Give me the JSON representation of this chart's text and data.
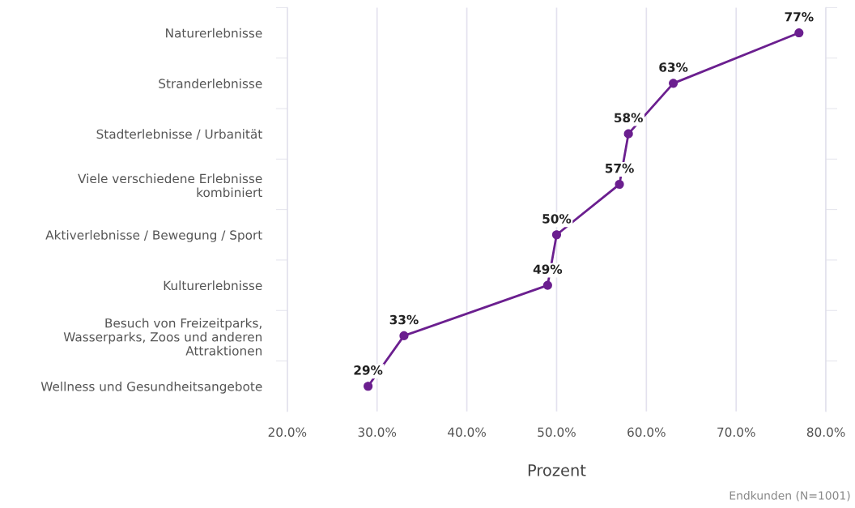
{
  "chart_data": {
    "type": "line",
    "orientation": "horizontal",
    "categories": [
      "Naturerlebnisse",
      "Stranderlebnisse",
      "Stadterlebnisse / Urbanität",
      "Viele verschiedene Erlebnisse\nkombiniert",
      "Aktiverlebnisse / Bewegung / Sport",
      "Kulturerlebnisse",
      "Besuch von Freizeitparks,\nWasserparks, Zoos und anderen\nAttraktionen",
      "Wellness und Gesundheitsangebote"
    ],
    "series": [
      {
        "color": "#6b1f8f",
        "values": [
          77,
          63,
          58,
          57,
          50,
          49,
          33,
          29
        ]
      }
    ],
    "value_labels": [
      "77%",
      "63%",
      "58%",
      "57%",
      "50%",
      "49%",
      "33%",
      "29%"
    ],
    "xlabel": "Prozent",
    "xlim": [
      20,
      80
    ],
    "xticks": [
      {
        "value": 20,
        "label": "20.0%"
      },
      {
        "value": 30,
        "label": "30.0%"
      },
      {
        "value": 40,
        "label": "40.0%"
      },
      {
        "value": 50,
        "label": "50.0%"
      },
      {
        "value": 60,
        "label": "60.0%"
      },
      {
        "value": 70,
        "label": "70.0%"
      },
      {
        "value": 80,
        "label": "80.0%"
      }
    ],
    "grid": "x",
    "marker": "circle",
    "line_style": "solid",
    "annotations": [
      "Endkunden (N=1001)"
    ]
  }
}
